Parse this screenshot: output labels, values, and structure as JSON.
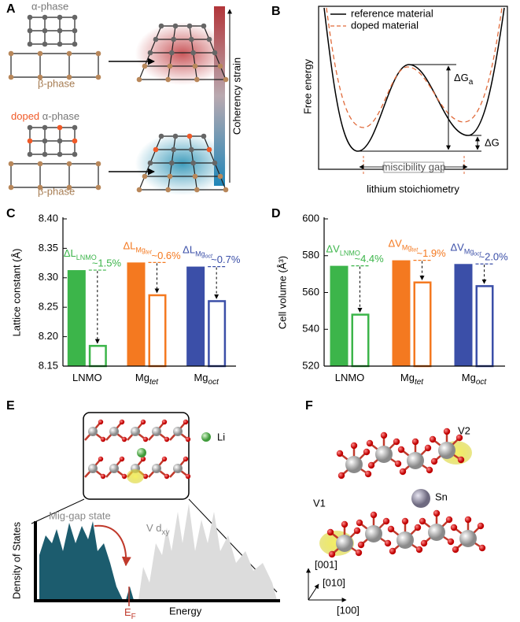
{
  "panels": {
    "A": {
      "label": "A",
      "alpha_top": "α-phase",
      "beta_top": "β-phase",
      "doped": "doped",
      "alpha_bottom": "α-phase",
      "beta_bottom": "β-phase",
      "colorbar_label": "Coherency strain"
    },
    "B": {
      "label": "B",
      "legend": [
        "reference material",
        "doped material"
      ],
      "y_label": "Free energy",
      "x_label": "lithium stoichiometry",
      "delta_ga": "ΔG",
      "delta_ga_sub": "a",
      "delta_g": "ΔG",
      "gap": "miscibility gap"
    },
    "E": {
      "label": "E",
      "li": "Li",
      "mid_gap": "Mig-gap state",
      "v_d": "V d",
      "v_d_sub": "xy",
      "y_label": "Density of States",
      "x_label": "Energy",
      "ef": "E",
      "ef_sub": "F"
    },
    "F": {
      "label": "F",
      "v2": "V2",
      "sn": "Sn",
      "v1": "V1",
      "axes": [
        "[001]",
        "[010]",
        "[100]"
      ]
    }
  },
  "chart_data": [
    {
      "type": "bar",
      "label": "C",
      "y_label": "Lattice constant (Å)",
      "categories": [
        "LNMO",
        "Mg",
        "Mg"
      ],
      "category_subscripts": [
        null,
        "tet",
        "oct"
      ],
      "colors": [
        "#3cb54a",
        "#f47920",
        "#3b4fa8"
      ],
      "series": [
        {
          "style": "filled",
          "values": [
            8.313,
            8.326,
            8.319
          ]
        },
        {
          "style": "hollow",
          "values": [
            8.186,
            8.272,
            8.262
          ]
        }
      ],
      "ylim": [
        8.15,
        8.4
      ],
      "yticks": [
        8.15,
        {
          "value": 8.2,
          "label": "8.20"
        },
        8.25,
        {
          "value": 8.3,
          "label": "8.30"
        },
        8.35,
        {
          "value": 8.4,
          "label": "8.40"
        }
      ],
      "annotations": [
        {
          "symbol": "ΔL",
          "sub": "LNMO",
          "subsub": null,
          "change": "~1.5%"
        },
        {
          "symbol": "ΔL",
          "sub": "Mg",
          "subsub": "tet",
          "change": "~0.6%"
        },
        {
          "symbol": "ΔL",
          "sub": "Mg",
          "subsub": "oct",
          "change": "~0.7%"
        }
      ]
    },
    {
      "type": "bar",
      "label": "D",
      "y_label": "Cell volume (Å³)",
      "categories": [
        "LNMO",
        "Mg",
        "Mg"
      ],
      "category_subscripts": [
        null,
        "tet",
        "oct"
      ],
      "colors": [
        "#3cb54a",
        "#f47920",
        "#3b4fa8"
      ],
      "series": [
        {
          "style": "filled",
          "values": [
            574.5,
            577.5,
            575.5
          ]
        },
        {
          "style": "hollow",
          "values": [
            548.5,
            566,
            564
          ]
        }
      ],
      "ylim": [
        520,
        600
      ],
      "yticks": [
        520,
        540,
        560,
        580,
        600
      ],
      "annotations": [
        {
          "symbol": "ΔV",
          "sub": "LNMO",
          "subsub": null,
          "change": "~4.4%"
        },
        {
          "symbol": "ΔV",
          "sub": "Mg",
          "subsub": "tet",
          "change": "~1.9%"
        },
        {
          "symbol": "ΔV",
          "sub": "Mg",
          "subsub": "oct",
          "change": "~2.0%"
        }
      ]
    }
  ]
}
